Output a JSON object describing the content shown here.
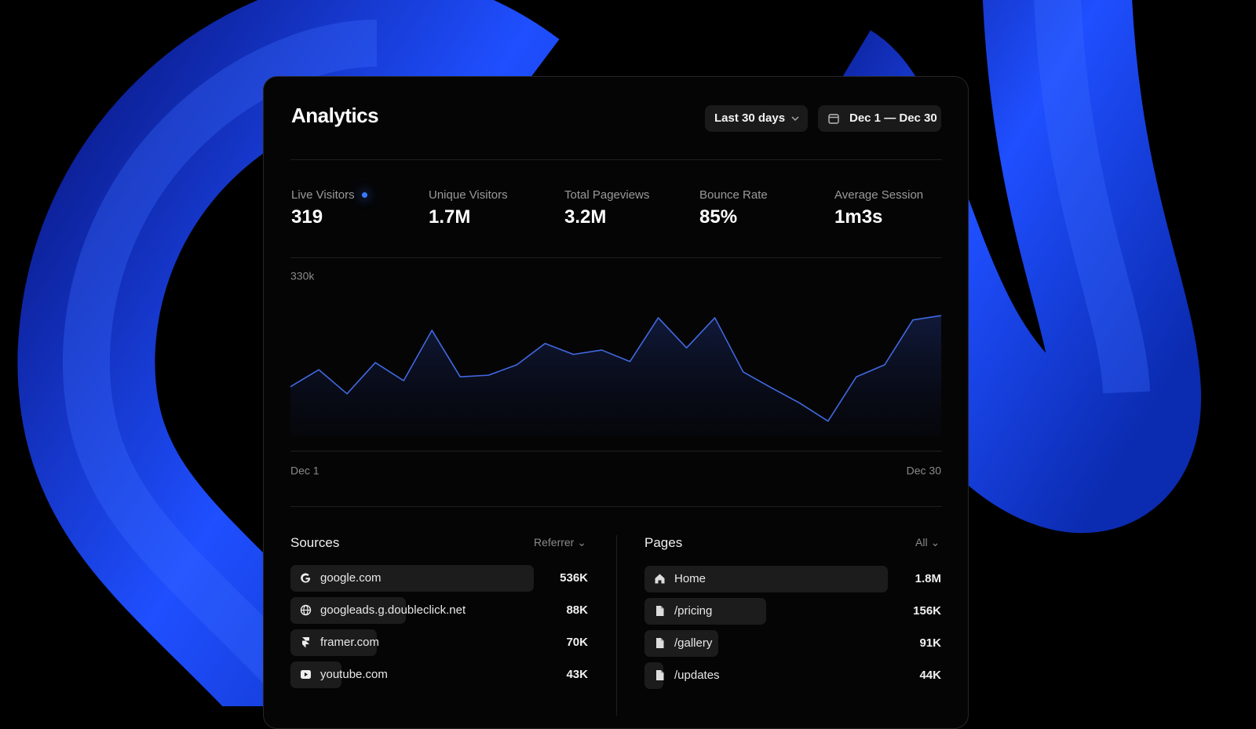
{
  "header": {
    "title": "Analytics",
    "range": "Last 30 days",
    "dates": "Dec 1 — Dec 30"
  },
  "stats": [
    {
      "label": "Live Visitors",
      "value": "319"
    },
    {
      "label": "Unique Visitors",
      "value": "1.7M"
    },
    {
      "label": "Total Pageviews",
      "value": "3.2M"
    },
    {
      "label": "Bounce Rate",
      "value": "85%"
    },
    {
      "label": "Average Session",
      "value": "1m3s"
    }
  ],
  "chart_data": {
    "type": "area",
    "color": "#4169e1",
    "categories": [
      "Dec 1",
      null,
      null,
      null,
      null,
      null,
      null,
      null,
      null,
      null,
      null,
      null,
      null,
      null,
      null,
      null,
      null,
      null,
      null,
      null,
      null,
      null,
      null,
      "Dec 30"
    ],
    "values": [
      118000,
      149000,
      105000,
      162000,
      129000,
      221000,
      136000,
      139000,
      158000,
      197000,
      177000,
      185000,
      164000,
      244000,
      189000,
      244000,
      145000,
      116000,
      88000,
      55000,
      136000,
      158000,
      240000,
      248000
    ],
    "ylim": [
      0,
      330000
    ],
    "yticks": [
      {
        "value": 330000,
        "label": "330k"
      }
    ]
  },
  "sources": {
    "title": "Sources",
    "filter": "Referrer",
    "rows": [
      {
        "name": "google.com",
        "value": "536K"
      },
      {
        "name": "googleads.g.doubleclick.net",
        "value": "88K"
      },
      {
        "name": "framer.com",
        "value": "70K"
      },
      {
        "name": "youtube.com",
        "value": "43K"
      }
    ]
  },
  "pages": {
    "title": "Pages",
    "filter": "All",
    "rows": [
      {
        "name": "Home",
        "value": "1.8M"
      },
      {
        "name": "/pricing",
        "value": "156K"
      },
      {
        "name": "/gallery",
        "value": "91K"
      },
      {
        "name": "/updates",
        "value": "44K"
      }
    ]
  }
}
